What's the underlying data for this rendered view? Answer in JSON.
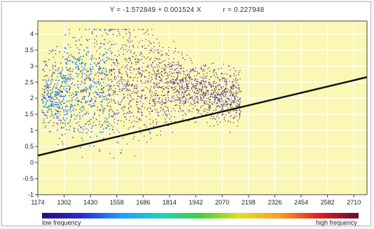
{
  "chart_data": {
    "type": "scatter",
    "title": "",
    "regression": {
      "equation_label": "Y = -1.572849 + 0.001524 X",
      "r_label": "r = 0.227948",
      "intercept": -1.572849,
      "slope": 0.001524
    },
    "xlabel": "",
    "ylabel": "",
    "xlim": [
      1174,
      2774
    ],
    "ylim": [
      -1,
      4.4
    ],
    "x_ticks": [
      "1174",
      "1302",
      "1430",
      "1558",
      "1686",
      "1814",
      "1942",
      "2070",
      "2198",
      "2326",
      "2454",
      "2582",
      "2710"
    ],
    "x_tick_values": [
      1174,
      1302,
      1430,
      1558,
      1686,
      1814,
      1942,
      2070,
      2198,
      2326,
      2454,
      2582,
      2710
    ],
    "y_ticks": [
      "-1",
      "-0.5",
      "0",
      "0.5",
      "1",
      "1.5",
      "2",
      "2.5",
      "3",
      "3.5",
      "4"
    ],
    "y_tick_values": [
      -1,
      -0.5,
      0,
      0.5,
      1,
      1.5,
      2,
      2.5,
      3,
      3.5,
      4
    ],
    "grid": true,
    "point_cloud": {
      "x_range": [
        1174,
        2160
      ],
      "dense_band_y": [
        0.5,
        3.8
      ],
      "note_color": "density colored"
    },
    "legend": {
      "low_label": "low frequency",
      "high_label": "high frequency",
      "colors": [
        "#2a0a7a",
        "#2b2bd6",
        "#1aa0ff",
        "#20d0c0",
        "#40d040",
        "#e0e020",
        "#ff9a20",
        "#e02020",
        "#6a0a30"
      ]
    },
    "colors": {
      "plot_background": "#fbf7b5",
      "grid": "#ffffff",
      "sparse_points": "#3a1a8a",
      "dense_points": "#1e8fff",
      "regression_line": "#111111"
    }
  }
}
